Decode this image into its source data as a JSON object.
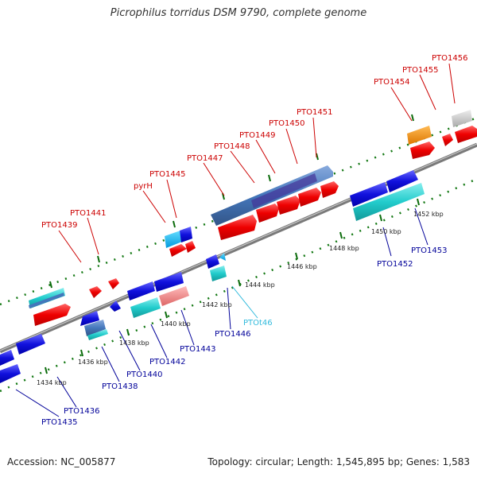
{
  "title": "Picrophilus torridus DSM 9790, complete genome",
  "accession": "Accession: NC_005877",
  "topology": "Topology: circular; Length: 1,545,895 bp; Genes: 1,583",
  "colors": {
    "upper_label": "#cc0000",
    "lower_label": "#000099",
    "rna_label": "#33bbdd",
    "backbone": "#888888",
    "dots": "#117711",
    "ticks": "#0b6b0b"
  },
  "scale_labels": [
    "1434 kbp",
    "1436 kbp",
    "1438 kbp",
    "1440 kbp",
    "1442 kbp",
    "1444 kbp",
    "1446 kbp",
    "1448 kbp",
    "1450 kbp",
    "1452 kbp"
  ],
  "upper_genes": [
    "PTO1439",
    "PTO1441",
    "pyrH",
    "PTO1445",
    "PTO1447",
    "PTO1448",
    "PTO1449",
    "PTO1450",
    "PTO1451",
    "PTO1454",
    "PTO1455",
    "PTO1456"
  ],
  "lower_genes": [
    "PTO1435",
    "PTO1436",
    "PTO1438",
    "PTO1440",
    "PTO1442",
    "PTO1443",
    "PTO1446",
    "PTOt46",
    "PTO1452",
    "PTO1453"
  ]
}
